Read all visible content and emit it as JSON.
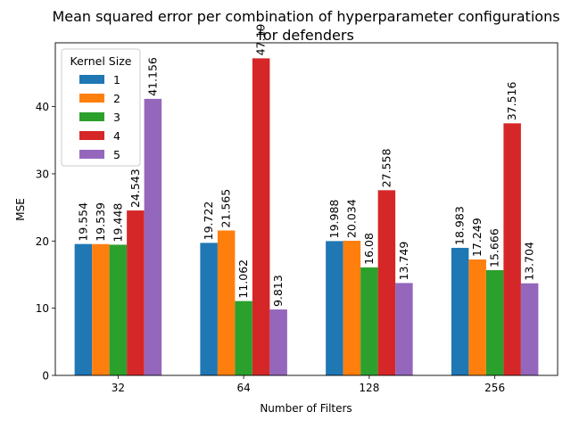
{
  "chart_data": {
    "type": "bar",
    "title_line1": "Mean squared error per combination of hyperparameter configurations",
    "title_line2": "for defenders",
    "xlabel": "Number of Filters",
    "ylabel": "MSE",
    "categories": [
      "32",
      "64",
      "128",
      "256"
    ],
    "ylim": [
      0,
      49.5
    ],
    "yticks": [
      0,
      10,
      20,
      30,
      40
    ],
    "legend_title": "Kernel Size",
    "legend_position": "upper-left",
    "grid": false,
    "series": [
      {
        "name": "1",
        "color": "#1f77b4",
        "values": [
          19.554,
          19.722,
          19.988,
          18.983
        ],
        "labels": [
          "19.554",
          "19.722",
          "19.988",
          "18.983"
        ]
      },
      {
        "name": "2",
        "color": "#ff7f0e",
        "values": [
          19.539,
          21.565,
          20.034,
          17.249
        ],
        "labels": [
          "19.539",
          "21.565",
          "20.034",
          "17.249"
        ]
      },
      {
        "name": "3",
        "color": "#2ca02c",
        "values": [
          19.448,
          11.062,
          16.08,
          15.666
        ],
        "labels": [
          "19.448",
          "11.062",
          "16.08",
          "15.666"
        ]
      },
      {
        "name": "4",
        "color": "#d62728",
        "values": [
          24.543,
          47.19,
          27.558,
          37.516
        ],
        "labels": [
          "24.543",
          "47.19",
          "27.558",
          "37.516"
        ]
      },
      {
        "name": "5",
        "color": "#9467bd",
        "values": [
          41.156,
          9.813,
          13.749,
          13.704
        ],
        "labels": [
          "41.156",
          "9.813",
          "13.749",
          "13.704"
        ]
      }
    ]
  }
}
